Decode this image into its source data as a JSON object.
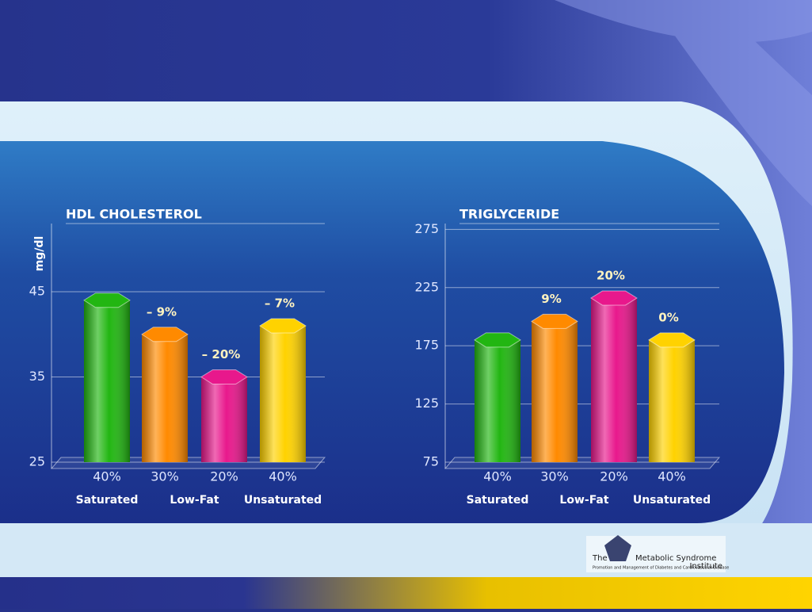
{
  "chart_data": [
    {
      "type": "bar",
      "title": "HDL CHOLESTEROL",
      "y_label": "mg/dl",
      "categories": [
        "40%",
        "30%",
        "20%",
        "40%"
      ],
      "values": [
        44,
        40,
        35,
        41
      ],
      "colors": [
        "#22b612",
        "#ff8a00",
        "#e8188c",
        "#ffd200"
      ],
      "changes": [
        null,
        -9,
        -20,
        -7
      ],
      "change_labels": [
        null,
        "– 9%",
        "– 20%",
        "– 7%"
      ],
      "groups": [
        "Saturated",
        "Low-Fat",
        "Unsaturated"
      ],
      "ylim": [
        25,
        53
      ],
      "yticks": [
        25,
        35,
        45
      ],
      "grid": true
    },
    {
      "type": "bar",
      "title": "TRIGLYCERIDE",
      "categories": [
        "40%",
        "30%",
        "20%",
        "40%"
      ],
      "values": [
        180,
        196,
        216,
        180
      ],
      "colors": [
        "#22b612",
        "#ff8a00",
        "#e8188c",
        "#ffd200"
      ],
      "changes": [
        null,
        9,
        20,
        0
      ],
      "change_labels": [
        null,
        "9%",
        "20%",
        "0%"
      ],
      "groups": [
        "Saturated",
        "Low-Fat",
        "Unsaturated"
      ],
      "ylim": [
        75,
        280
      ],
      "yticks": [
        75,
        125,
        175,
        225,
        275
      ],
      "grid": true
    }
  ],
  "logo": {
    "prefix": "The",
    "name": "Metabolic Syndrome",
    "suffix": "Institute",
    "tagline": "Promotion and Management of Diabetes and Cardiovascular Disease"
  }
}
